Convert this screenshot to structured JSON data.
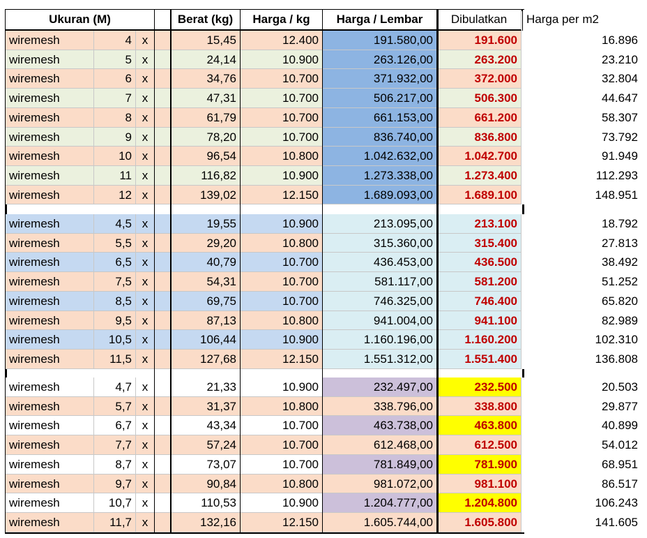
{
  "header": [
    "Ukuran (M)",
    "Berat (kg)",
    "Harga / kg",
    "Harga / Lembar",
    "Dibulatkan",
    "Harga per m2"
  ],
  "groups": [
    [
      [
        "wiremesh",
        "4",
        "x",
        "15,45",
        "12.400",
        "191.580,00",
        "191.600",
        "16.896"
      ],
      [
        "wiremesh",
        "5",
        "x",
        "24,14",
        "10.900",
        "263.126,00",
        "263.200",
        "23.210"
      ],
      [
        "wiremesh",
        "6",
        "x",
        "34,76",
        "10.700",
        "371.932,00",
        "372.000",
        "32.804"
      ],
      [
        "wiremesh",
        "7",
        "x",
        "47,31",
        "10.700",
        "506.217,00",
        "506.300",
        "44.647"
      ],
      [
        "wiremesh",
        "8",
        "x",
        "61,79",
        "10.700",
        "661.153,00",
        "661.200",
        "58.307"
      ],
      [
        "wiremesh",
        "9",
        "x",
        "78,20",
        "10.700",
        "836.740,00",
        "836.800",
        "73.792"
      ],
      [
        "wiremesh",
        "10",
        "x",
        "96,54",
        "10.800",
        "1.042.632,00",
        "1.042.700",
        "91.949"
      ],
      [
        "wiremesh",
        "11",
        "x",
        "116,82",
        "10.900",
        "1.273.338,00",
        "1.273.400",
        "112.293"
      ],
      [
        "wiremesh",
        "12",
        "x",
        "139,02",
        "12.150",
        "1.689.093,00",
        "1.689.100",
        "148.951"
      ]
    ],
    [
      [
        "wiremesh",
        "4,5",
        "x",
        "19,55",
        "10.900",
        "213.095,00",
        "213.100",
        "18.792"
      ],
      [
        "wiremesh",
        "5,5",
        "x",
        "29,20",
        "10.800",
        "315.360,00",
        "315.400",
        "27.813"
      ],
      [
        "wiremesh",
        "6,5",
        "x",
        "40,79",
        "10.700",
        "436.453,00",
        "436.500",
        "38.492"
      ],
      [
        "wiremesh",
        "7,5",
        "x",
        "54,31",
        "10.700",
        "581.117,00",
        "581.200",
        "51.252"
      ],
      [
        "wiremesh",
        "8,5",
        "x",
        "69,75",
        "10.700",
        "746.325,00",
        "746.400",
        "65.820"
      ],
      [
        "wiremesh",
        "9,5",
        "x",
        "87,13",
        "10.800",
        "941.004,00",
        "941.100",
        "82.989"
      ],
      [
        "wiremesh",
        "10,5",
        "x",
        "106,44",
        "10.900",
        "1.160.196,00",
        "1.160.200",
        "102.310"
      ],
      [
        "wiremesh",
        "11,5",
        "x",
        "127,68",
        "12.150",
        "1.551.312,00",
        "1.551.400",
        "136.808"
      ]
    ],
    [
      [
        "wiremesh",
        "4,7",
        "x",
        "21,33",
        "10.900",
        "232.497,00",
        "232.500",
        "20.503"
      ],
      [
        "wiremesh",
        "5,7",
        "x",
        "31,37",
        "10.800",
        "338.796,00",
        "338.800",
        "29.877"
      ],
      [
        "wiremesh",
        "6,7",
        "x",
        "43,34",
        "10.700",
        "463.738,00",
        "463.800",
        "40.899"
      ],
      [
        "wiremesh",
        "7,7",
        "x",
        "57,24",
        "10.700",
        "612.468,00",
        "612.500",
        "54.012"
      ],
      [
        "wiremesh",
        "8,7",
        "x",
        "73,07",
        "10.700",
        "781.849,00",
        "781.900",
        "68.951"
      ],
      [
        "wiremesh",
        "9,7",
        "x",
        "90,84",
        "10.800",
        "981.072,00",
        "981.100",
        "86.517"
      ],
      [
        "wiremesh",
        "10,7",
        "x",
        "110,53",
        "10.900",
        "1.204.777,00",
        "1.204.800",
        "106.243"
      ],
      [
        "wiremesh",
        "11,7",
        "x",
        "132,16",
        "12.150",
        "1.605.744,00",
        "1.605.800",
        "141.605"
      ]
    ]
  ]
}
